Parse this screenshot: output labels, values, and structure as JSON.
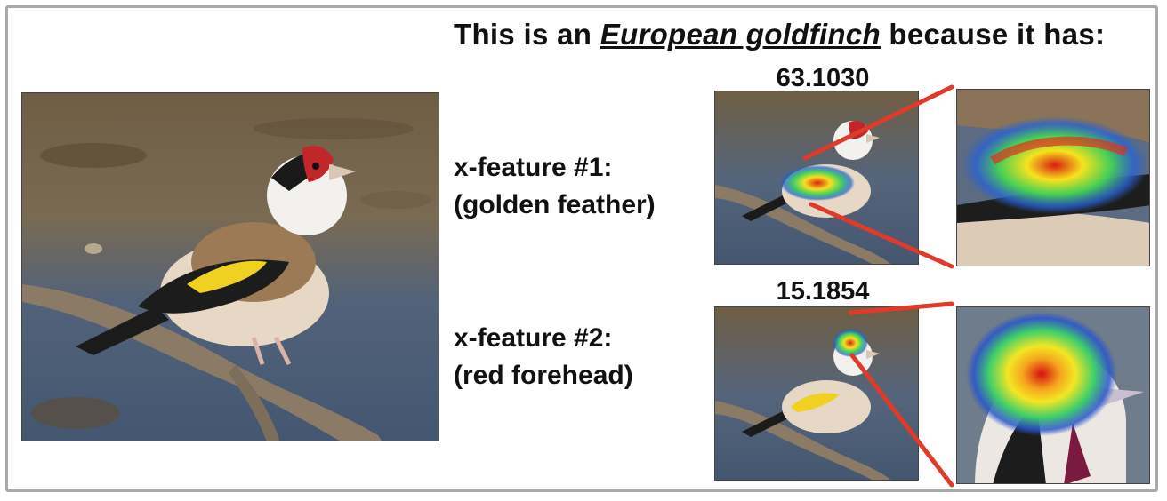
{
  "caption": {
    "prefix": "This is an ",
    "species": "European goldfinch",
    "suffix": " because it has:"
  },
  "features": [
    {
      "score": "63.1030",
      "title": "x-feature #1:",
      "description": "(golden feather)"
    },
    {
      "score": "15.1854",
      "title": "x-feature #2:",
      "description": "(red forehead)"
    }
  ],
  "colors": {
    "connector": "#e03a2b",
    "frame": "#a9a9a9",
    "water": "#51627a",
    "mud": "#6b5a40"
  }
}
